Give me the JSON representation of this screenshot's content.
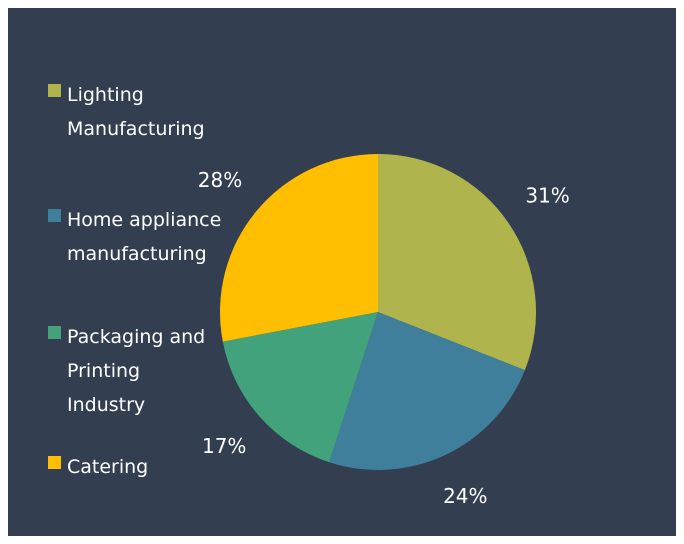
{
  "chart_data": {
    "type": "pie",
    "slices": [
      {
        "label": "Lighting Manufacturing",
        "value": 31,
        "value_label": "31%",
        "color": "#afb54c"
      },
      {
        "label": "Home appliance manufacturing",
        "value": 24,
        "value_label": "24%",
        "color": "#3f7f9c"
      },
      {
        "label": "Packaging and Printing Industry",
        "value": 17,
        "value_label": "17%",
        "color": "#41a27c"
      },
      {
        "label": "Catering",
        "value": 28,
        "value_label": "28%",
        "color": "#ffbf00"
      }
    ],
    "legend_position": "left",
    "start_angle": "12 o'clock",
    "direction": "clockwise",
    "background": "#333e50",
    "label_color": "#ffffff"
  }
}
